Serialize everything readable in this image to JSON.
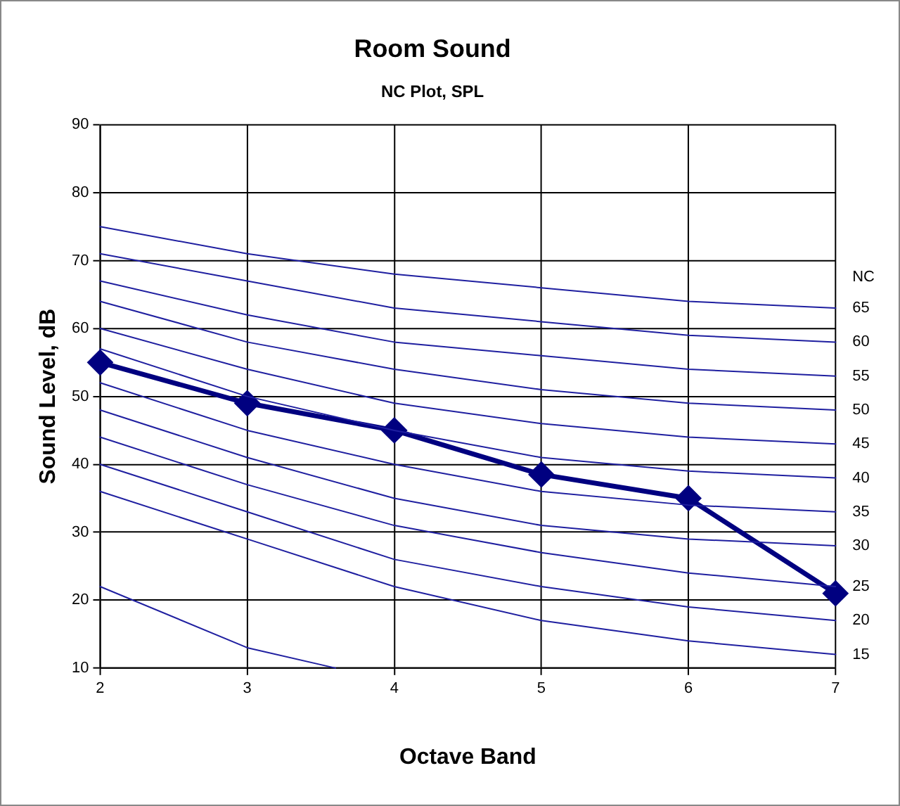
{
  "chart_data": {
    "type": "line",
    "title": "Room Sound",
    "subtitle": "NC Plot, SPL",
    "xlabel": "Octave Band",
    "ylabel": "Sound Level, dB",
    "legend_title": "NC",
    "x": [
      2,
      3,
      4,
      5,
      6,
      7
    ],
    "xlim": [
      2,
      7
    ],
    "xticks": [
      2,
      3,
      4,
      5,
      6,
      7
    ],
    "ylim": [
      10,
      90
    ],
    "yticks": [
      10,
      20,
      30,
      40,
      50,
      60,
      70,
      80,
      90
    ],
    "grid": true,
    "legend": false,
    "series": [
      {
        "name": "65",
        "color": "#1f1fa0",
        "marker": "none",
        "values": [
          75,
          71,
          68,
          66,
          64,
          63
        ]
      },
      {
        "name": "60",
        "color": "#1f1fa0",
        "marker": "none",
        "values": [
          71,
          67,
          63,
          61,
          59,
          58
        ]
      },
      {
        "name": "55",
        "color": "#1f1fa0",
        "marker": "none",
        "values": [
          67,
          62,
          58,
          56,
          54,
          53
        ]
      },
      {
        "name": "50",
        "color": "#1f1fa0",
        "marker": "none",
        "values": [
          64,
          58,
          54,
          51,
          49,
          48
        ]
      },
      {
        "name": "45",
        "color": "#1f1fa0",
        "marker": "none",
        "values": [
          60,
          54,
          49,
          46,
          44,
          43
        ]
      },
      {
        "name": "40",
        "color": "#1f1fa0",
        "marker": "none",
        "values": [
          57,
          50,
          45,
          41,
          39,
          38
        ]
      },
      {
        "name": "35",
        "color": "#1f1fa0",
        "marker": "none",
        "values": [
          52,
          45,
          40,
          36,
          34,
          33
        ]
      },
      {
        "name": "30",
        "color": "#1f1fa0",
        "marker": "none",
        "values": [
          48,
          41,
          35,
          31,
          29,
          28
        ]
      },
      {
        "name": "25",
        "color": "#1f1fa0",
        "marker": "none",
        "values": [
          44,
          37,
          31,
          27,
          24,
          22
        ]
      },
      {
        "name": "20",
        "color": "#1f1fa0",
        "marker": "none",
        "values": [
          40,
          33,
          26,
          22,
          19,
          17
        ]
      },
      {
        "name": "15",
        "color": "#1f1fa0",
        "marker": "none",
        "values": [
          36,
          29,
          22,
          17,
          14,
          12
        ]
      },
      {
        "color": "#1f1fa0",
        "marker": "none",
        "x": [
          2,
          3,
          3.6
        ],
        "values": [
          22,
          13,
          10
        ]
      },
      {
        "color": "#000080",
        "marker": "diamond",
        "values": [
          55,
          49,
          45,
          38.5,
          35,
          21
        ]
      }
    ]
  }
}
